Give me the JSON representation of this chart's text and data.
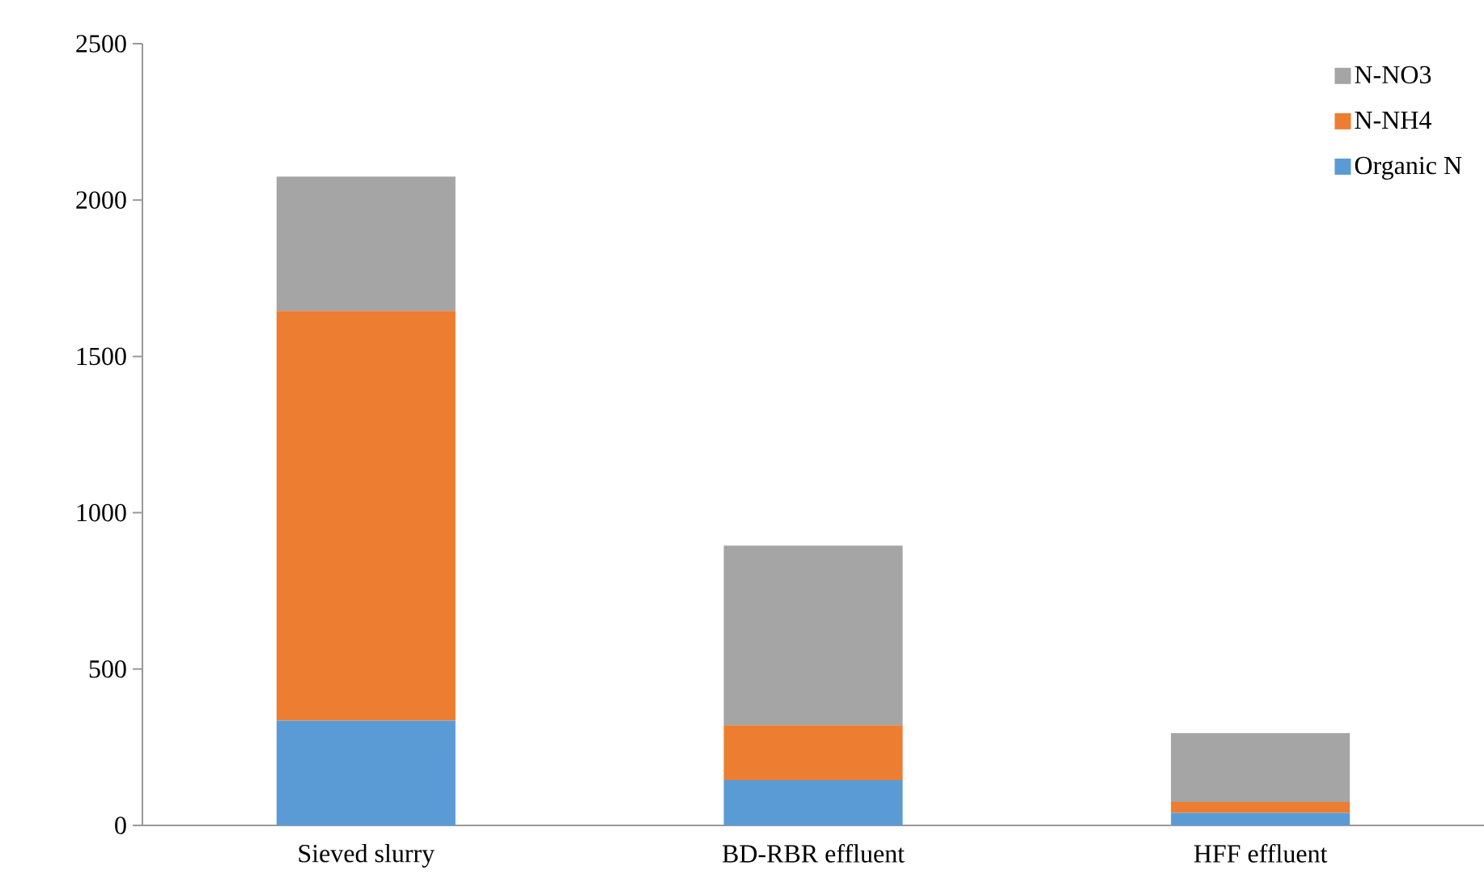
{
  "chart_data": {
    "type": "bar",
    "stacked": true,
    "categories": [
      "Sieved slurry",
      "BD-RBR effluent",
      "HFF effluent"
    ],
    "series": [
      {
        "name": "Organic N",
        "color": "#5b9bd5",
        "values": [
          335,
          145,
          40
        ]
      },
      {
        "name": "N-NH4",
        "color": "#ed7d31",
        "values": [
          1310,
          175,
          35
        ]
      },
      {
        "name": "N-NO3",
        "color": "#a5a5a5",
        "values": [
          430,
          575,
          220
        ]
      }
    ],
    "ylim": [
      0,
      2500
    ],
    "yticks": [
      0,
      500,
      1000,
      1500,
      2000,
      2500
    ],
    "legend": "top right",
    "grid": false
  }
}
